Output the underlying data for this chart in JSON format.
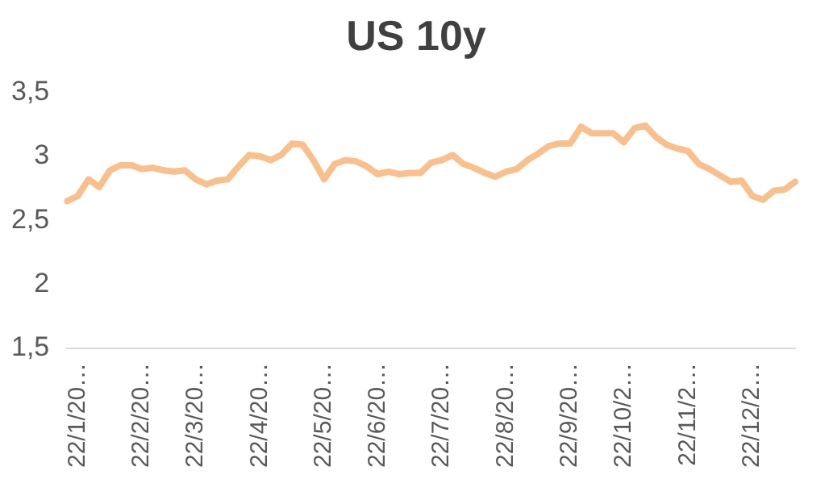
{
  "chart_data": {
    "type": "line",
    "title": "US 10y",
    "categories": [
      null,
      "22/1/20…",
      null,
      null,
      null,
      null,
      null,
      "22/2/20…",
      null,
      null,
      null,
      null,
      "22/3/20…",
      null,
      null,
      null,
      null,
      null,
      "22/4/20…",
      null,
      null,
      null,
      null,
      null,
      "22/5/20…",
      null,
      null,
      null,
      null,
      "22/6/20…",
      null,
      null,
      null,
      null,
      null,
      "22/7/20…",
      null,
      null,
      null,
      null,
      null,
      "22/8/20…",
      null,
      null,
      null,
      null,
      null,
      "22/9/20…",
      null,
      null,
      null,
      null,
      "22/10/2…",
      null,
      null,
      null,
      null,
      null,
      "22/11/2…",
      null,
      null,
      null,
      null,
      null,
      "22/12/2…",
      null,
      null,
      null,
      null
    ],
    "series": [
      {
        "color": "#f8c08e",
        "values": [
          2.65,
          2.69,
          2.82,
          2.76,
          2.89,
          2.93,
          2.93,
          2.9,
          2.91,
          2.89,
          2.88,
          2.89,
          2.82,
          2.78,
          2.81,
          2.82,
          2.92,
          3.01,
          3.0,
          2.97,
          3.01,
          3.1,
          3.09,
          2.97,
          2.82,
          2.94,
          2.97,
          2.96,
          2.92,
          2.86,
          2.88,
          2.86,
          2.87,
          2.87,
          2.95,
          2.97,
          3.01,
          2.94,
          2.91,
          2.87,
          2.84,
          2.88,
          2.9,
          2.97,
          3.02,
          3.08,
          3.1,
          3.1,
          3.23,
          3.18,
          3.18,
          3.18,
          3.11,
          3.22,
          3.24,
          3.15,
          3.09,
          3.06,
          3.04,
          2.94,
          2.9,
          2.85,
          2.8,
          2.81,
          2.69,
          2.66,
          2.73,
          2.74,
          2.8
        ]
      }
    ],
    "ylim": [
      1.5,
      3.5
    ],
    "yticks": [
      {
        "value": 1.5,
        "label": "1,5"
      },
      {
        "value": 2,
        "label": "2"
      },
      {
        "value": 2.5,
        "label": "2,5"
      },
      {
        "value": 3,
        "label": "3"
      },
      {
        "value": 3.5,
        "label": "3,5"
      }
    ],
    "grid": false,
    "legend": false,
    "marker": "none",
    "line_style": "solid"
  }
}
